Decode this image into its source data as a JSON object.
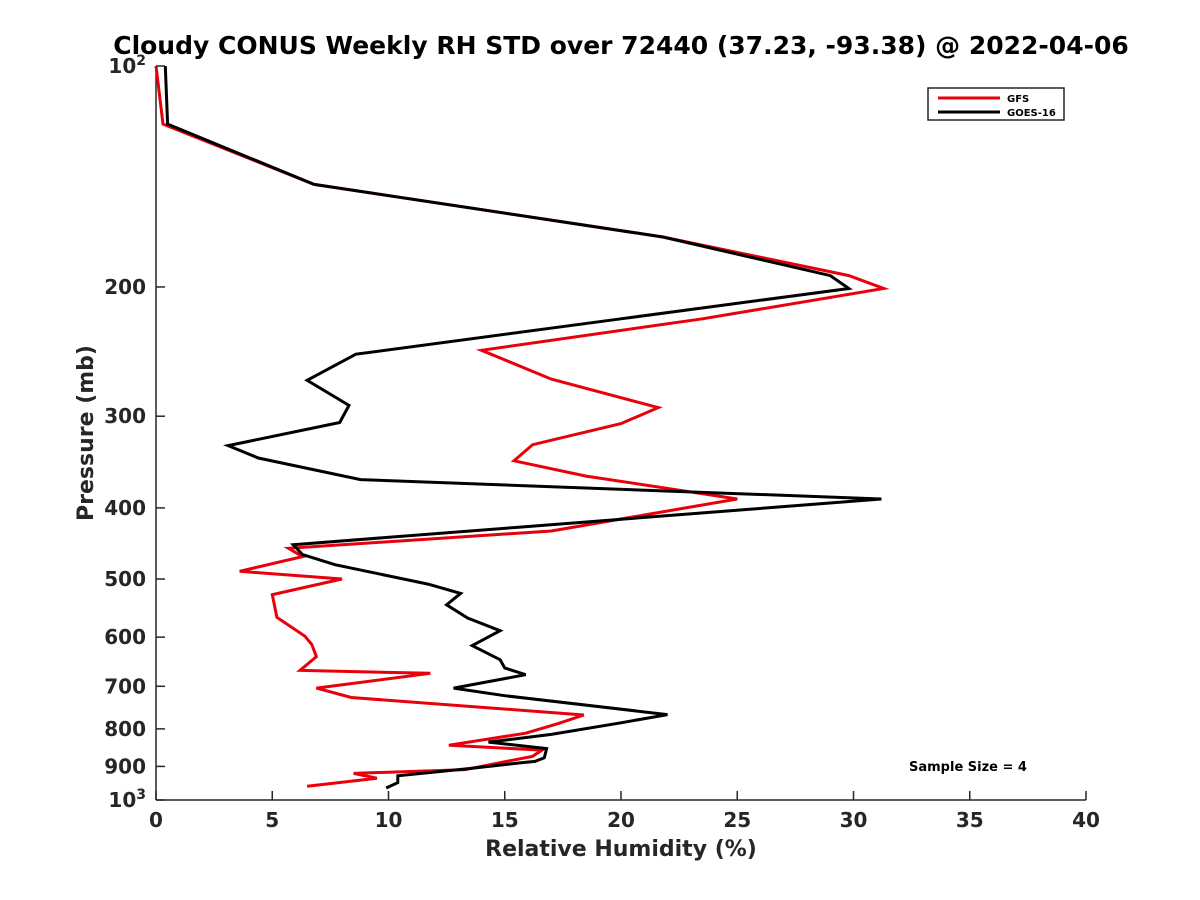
{
  "chart_data": {
    "type": "line",
    "title": "Cloudy CONUS Weekly RH STD over 72440 (37.23, -93.38) @ 2022-04-06",
    "xlabel": "Relative Humidity (%)",
    "ylabel": "Pressure (mb)",
    "xlim": [
      0,
      40
    ],
    "ylim": [
      100,
      1000
    ],
    "y_scale": "log",
    "y_reversed": true,
    "grid": false,
    "legend_position": "top-right",
    "x_ticks": [
      "0",
      "5",
      "10",
      "15",
      "20",
      "25",
      "30",
      "35",
      "40"
    ],
    "y_ticks": [
      {
        "value": 100,
        "base": "10",
        "exp": "2"
      },
      {
        "value": 200,
        "base": "200",
        "exp": ""
      },
      {
        "value": 300,
        "base": "300",
        "exp": ""
      },
      {
        "value": 400,
        "base": "400",
        "exp": ""
      },
      {
        "value": 500,
        "base": "500",
        "exp": ""
      },
      {
        "value": 600,
        "base": "600",
        "exp": ""
      },
      {
        "value": 700,
        "base": "700",
        "exp": ""
      },
      {
        "value": 800,
        "base": "800",
        "exp": ""
      },
      {
        "value": 900,
        "base": "900",
        "exp": ""
      },
      {
        "value": 1000,
        "base": "10",
        "exp": "3"
      }
    ],
    "annotation": "Sample Size = 4",
    "series": [
      {
        "name": "GFS",
        "color": "#e8000b",
        "points": [
          [
            0.0,
            100
          ],
          [
            0.3,
            120
          ],
          [
            6.8,
            145
          ],
          [
            21.8,
            171
          ],
          [
            29.8,
            193
          ],
          [
            31.3,
            201
          ],
          [
            23.5,
            221
          ],
          [
            14.0,
            244
          ],
          [
            17.0,
            267
          ],
          [
            21.6,
            292
          ],
          [
            20.0,
            307
          ],
          [
            16.2,
            328
          ],
          [
            15.4,
            345
          ],
          [
            18.5,
            362
          ],
          [
            25.0,
            389
          ],
          [
            21.0,
            409
          ],
          [
            17.0,
            430
          ],
          [
            5.7,
            454
          ],
          [
            6.3,
            466
          ],
          [
            3.6,
            488
          ],
          [
            8.0,
            500
          ],
          [
            5.0,
            525
          ],
          [
            5.2,
            564
          ],
          [
            6.4,
            598
          ],
          [
            6.7,
            614
          ],
          [
            6.9,
            638
          ],
          [
            6.2,
            666
          ],
          [
            11.8,
            672
          ],
          [
            6.9,
            704
          ],
          [
            8.4,
            725
          ],
          [
            18.4,
            766
          ],
          [
            17.3,
            787
          ],
          [
            15.9,
            811
          ],
          [
            12.6,
            842
          ],
          [
            16.6,
            855
          ],
          [
            16.2,
            872
          ],
          [
            13.3,
            909
          ],
          [
            8.5,
            920
          ],
          [
            9.5,
            934
          ],
          [
            6.5,
            958
          ]
        ]
      },
      {
        "name": "GOES-16",
        "color": "#000000",
        "points": [
          [
            0.4,
            100
          ],
          [
            0.5,
            120
          ],
          [
            6.8,
            145
          ],
          [
            21.8,
            171
          ],
          [
            29.0,
            193
          ],
          [
            29.8,
            201
          ],
          [
            20.0,
            221
          ],
          [
            8.6,
            247
          ],
          [
            6.5,
            268
          ],
          [
            8.3,
            290
          ],
          [
            7.9,
            306
          ],
          [
            3.1,
            329
          ],
          [
            4.4,
            342
          ],
          [
            8.8,
            366
          ],
          [
            31.2,
            389
          ],
          [
            15.6,
            425
          ],
          [
            5.9,
            449
          ],
          [
            6.3,
            463
          ],
          [
            7.7,
            478
          ],
          [
            11.7,
            508
          ],
          [
            13.1,
            523
          ],
          [
            12.5,
            542
          ],
          [
            13.4,
            565
          ],
          [
            14.8,
            588
          ],
          [
            13.6,
            616
          ],
          [
            14.8,
            644
          ],
          [
            15.0,
            661
          ],
          [
            15.9,
            675
          ],
          [
            12.8,
            704
          ],
          [
            15.0,
            721
          ],
          [
            22.0,
            765
          ],
          [
            20.0,
            785
          ],
          [
            17.0,
            814
          ],
          [
            14.3,
            834
          ],
          [
            16.8,
            851
          ],
          [
            16.7,
            876
          ],
          [
            16.3,
            886
          ],
          [
            15.8,
            889
          ],
          [
            13.5,
            906
          ],
          [
            10.4,
            927
          ],
          [
            10.4,
            947
          ],
          [
            9.9,
            963
          ]
        ]
      }
    ]
  }
}
